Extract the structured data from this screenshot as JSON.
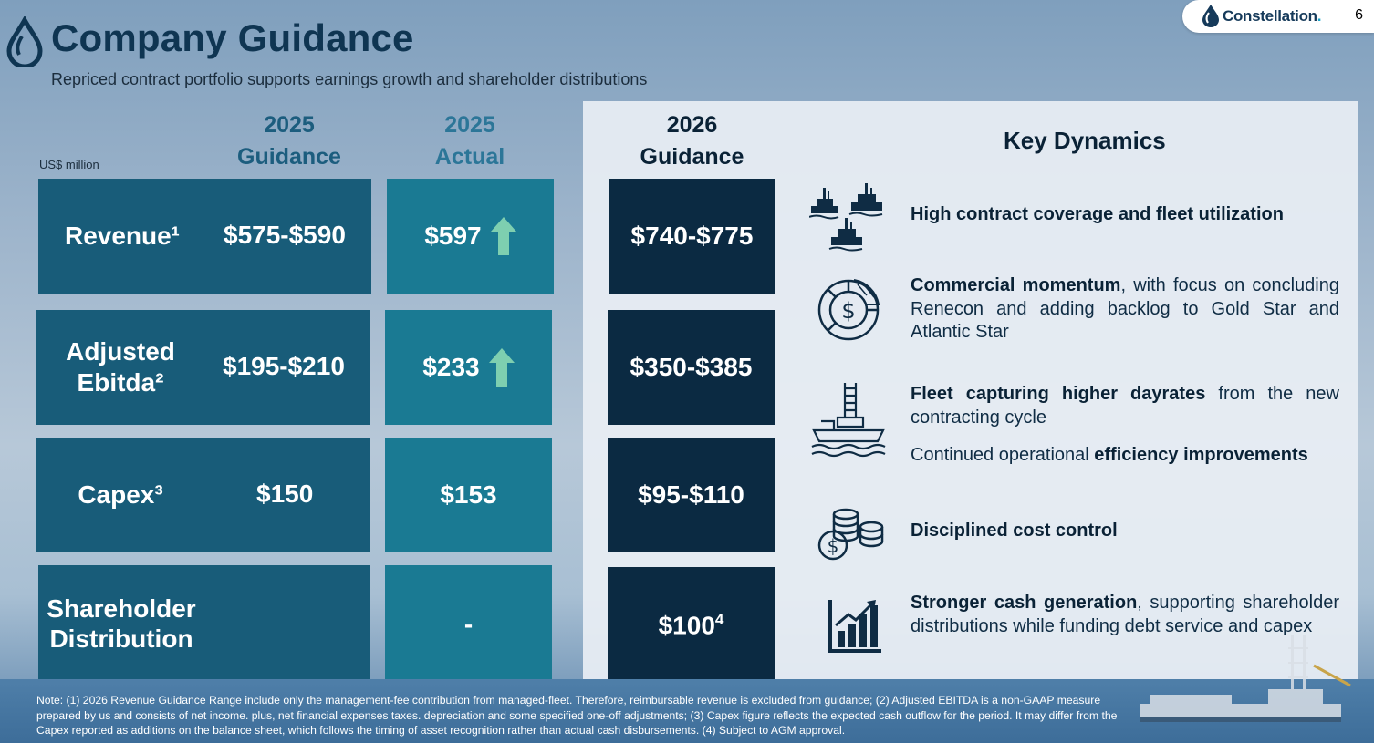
{
  "header": {
    "title": "Company Guidance",
    "subtitle": "Repriced contract portfolio supports earnings growth and shareholder distributions",
    "brand": "Constellation",
    "brand_dot": ".",
    "page_number": "6"
  },
  "table": {
    "unit": "US$ million",
    "columns": {
      "guidance_2025": [
        "2025",
        "Guidance"
      ],
      "actual_2025": [
        "2025",
        "Actual"
      ],
      "guidance_2026": [
        "2026",
        "Guidance"
      ]
    },
    "rows": [
      {
        "label": "Revenue¹",
        "guidance_2025": "$575-$590",
        "actual_2025": "$597",
        "guidance_2026": "$740-$775",
        "arrow": "up-arrow-icon"
      },
      {
        "label": [
          "Adjusted",
          "Ebitda²"
        ],
        "guidance_2025": "$195-$210",
        "actual_2025": "$233",
        "guidance_2026": "$350-$385",
        "arrow": "up-arrow-icon"
      },
      {
        "label": "Capex³",
        "guidance_2025": "$150",
        "actual_2025": "$153",
        "guidance_2026": "$95-$110"
      },
      {
        "label": [
          "Shareholder",
          "Distribution"
        ],
        "guidance_2025": "",
        "actual_2025": "-",
        "guidance_2026": "$100",
        "guidance_2026_sup": "4"
      }
    ]
  },
  "key_dynamics": {
    "title": "Key Dynamics",
    "items": [
      {
        "icon": "rigs-fleet-icon",
        "bold": "High contract coverage and fleet utilization",
        "rest": ""
      },
      {
        "icon": "pie-dollar-icon",
        "bold": "Commercial momentum",
        "rest": ", with focus on concluding Renecon and adding backlog to Gold Star and Atlantic Star"
      },
      {
        "icon": "drillship-icon",
        "bold": "Fleet capturing higher dayrates",
        "rest": " from the new contracting cycle",
        "extra_plain": "Continued operational ",
        "extra_bold": "efficiency improvements"
      },
      {
        "icon": "coins-dollar-icon",
        "bold": "Disciplined cost control",
        "rest": ""
      },
      {
        "icon": "growth-chart-icon",
        "bold": "Stronger cash generation",
        "rest": ", supporting shareholder distributions while funding debt service and capex"
      }
    ]
  },
  "footer": {
    "note": "Note: (1) 2026 Revenue Guidance Range include only the management-fee contribution from managed-fleet. Therefore, reimbursable revenue is excluded from guidance; (2) Adjusted EBITDA is a non-GAAP measure prepared by us and consists of net income. plus, net financial expenses taxes. depreciation and some specified one-off adjustments; (3) Capex figure reflects the expected cash outflow for the period. It may differ from the Capex reported as additions on the balance sheet, which follows the timing of asset recognition rather than actual cash disbursements. (4) Subject to AGM approval."
  },
  "colors": {
    "guidance_cell": "#185c79",
    "actual_cell": "#1a7a93",
    "guidance_2026_cell": "#0b2a42",
    "arrow": "#7ecfb0",
    "title": "#0f3552"
  }
}
